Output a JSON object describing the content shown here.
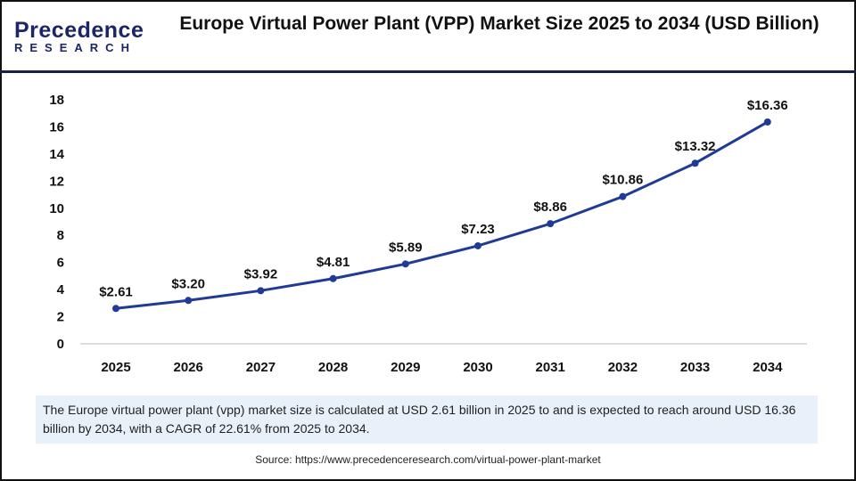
{
  "logo": {
    "line1": "Precedence",
    "line2": "RESEARCH"
  },
  "title": "Europe Virtual Power Plant (VPP) Market Size 2025 to 2034 (USD Billion)",
  "chart_data": {
    "type": "line",
    "title": "Europe Virtual Power Plant (VPP) Market Size 2025 to 2034 (USD Billion)",
    "categories": [
      "2025",
      "2026",
      "2027",
      "2028",
      "2029",
      "2030",
      "2031",
      "2032",
      "2033",
      "2034"
    ],
    "values": [
      2.61,
      3.2,
      3.92,
      4.81,
      5.89,
      7.23,
      8.86,
      10.86,
      13.32,
      16.36
    ],
    "data_labels": [
      "$2.61",
      "$3.20",
      "$3.92",
      "$4.81",
      "$5.89",
      "$7.23",
      "$8.86",
      "$10.86",
      "$13.32",
      "$16.36"
    ],
    "yticks": [
      0,
      2,
      4,
      6,
      8,
      10,
      12,
      14,
      16,
      18
    ],
    "ylim": [
      0,
      18
    ],
    "grid": false,
    "line_color": "#1f3b96"
  },
  "info": "The Europe virtual power plant (vpp) market size is calculated at USD 2.61 billion in 2025 to and is expected to reach around USD 16.36 billion by 2034, with a CAGR of 22.61% from 2025 to 2034.",
  "source": "Source: https://www.precedenceresearch.com/virtual-power-plant-market"
}
